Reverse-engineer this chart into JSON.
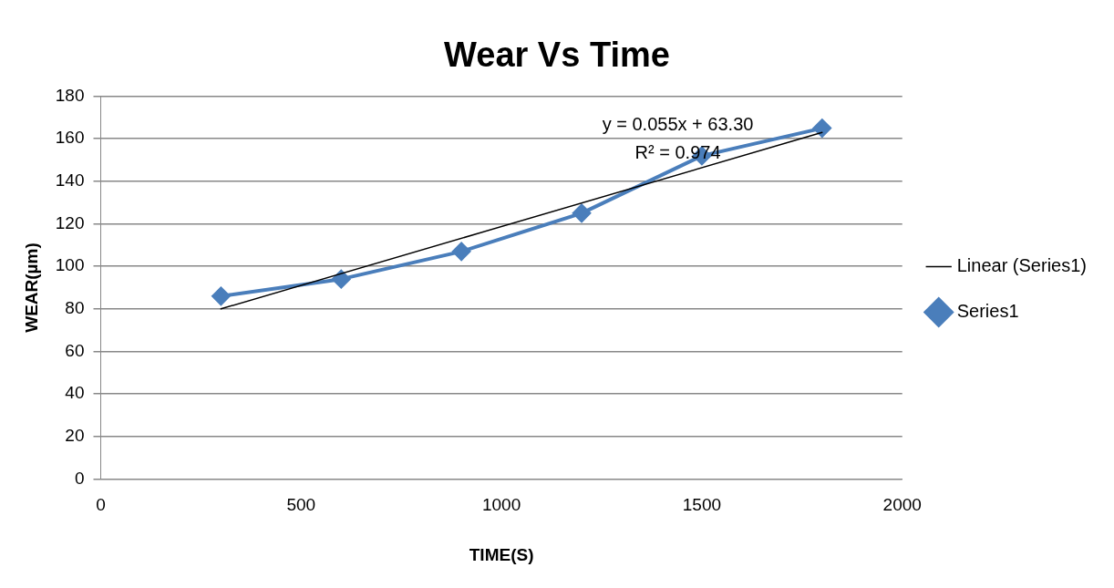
{
  "chart_data": {
    "type": "line",
    "title": "Wear Vs Time",
    "xlabel": "TIME(S)",
    "ylabel": "WEAR(µm)",
    "xlim": [
      0,
      2000
    ],
    "xticks": [
      0,
      500,
      1000,
      1500,
      2000
    ],
    "ylim": [
      0,
      180
    ],
    "yticks": [
      0,
      20,
      40,
      60,
      80,
      100,
      120,
      140,
      160,
      180
    ],
    "grid": "y",
    "legend": "right",
    "marker": "diamond",
    "x": [
      300,
      600,
      900,
      1200,
      1500,
      1800
    ],
    "series": [
      {
        "name": "Series1",
        "color": "#4a7ebb",
        "values": [
          86,
          94,
          107,
          125,
          152,
          165
        ]
      },
      {
        "name": "Linear (Series1)",
        "color": "#000000",
        "marker": "none",
        "x": [
          300,
          1800
        ],
        "values": [
          80,
          163
        ]
      }
    ],
    "annotations": [
      "y = 0.055x + 63.30",
      "R² = 0.974"
    ]
  }
}
